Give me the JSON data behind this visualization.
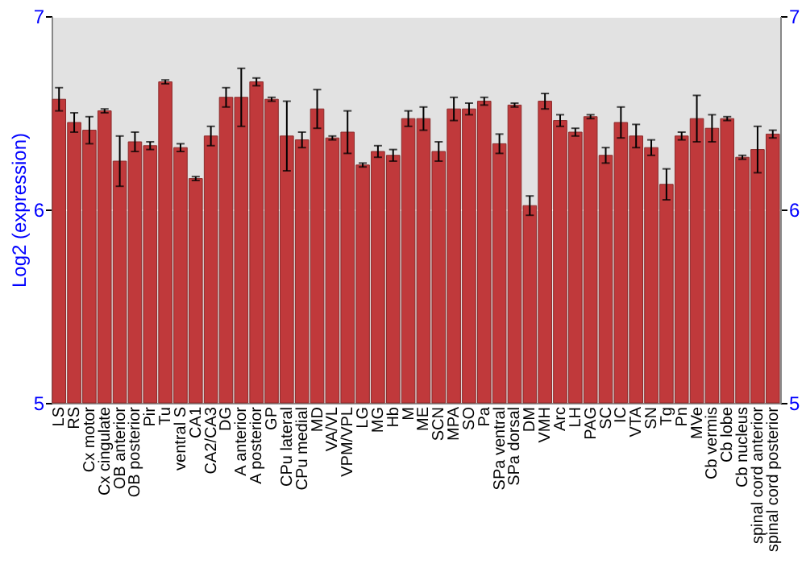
{
  "chart_data": {
    "type": "bar",
    "ylabel": "Log2 (expression)",
    "categories": [
      "LS",
      "RS",
      "Cx motor",
      "Cx cingulate",
      "OB anterior",
      "OB posterior",
      "Pir",
      "Tu",
      "ventral S",
      "CA1",
      "CA2/CA3",
      "DG",
      "A anterior",
      "A posterior",
      "GP",
      "CPu lateral",
      "CPu medial",
      "MD",
      "VA/VL",
      "VPM/VPL",
      "LG",
      "MG",
      "Hb",
      "M",
      "ME",
      "SCN",
      "MPA",
      "SO",
      "Pa",
      "SPa ventral",
      "SPa dorsal",
      "DM",
      "VMH",
      "Arc",
      "LH",
      "PAG",
      "SC",
      "IC",
      "VTA",
      "SN",
      "Tg",
      "Pn",
      "MVe",
      "Cb vermis",
      "Cb lobe",
      "Cb nucleus",
      "spinal cord anterior",
      "spinal cord posterior"
    ],
    "values": [
      6.57,
      6.45,
      6.41,
      6.51,
      6.25,
      6.35,
      6.33,
      6.66,
      6.32,
      6.16,
      6.38,
      6.58,
      6.58,
      6.66,
      6.57,
      6.38,
      6.36,
      6.52,
      6.37,
      6.4,
      6.23,
      6.3,
      6.28,
      6.47,
      6.47,
      6.3,
      6.52,
      6.52,
      6.56,
      6.34,
      6.54,
      6.02,
      6.56,
      6.46,
      6.4,
      6.48,
      6.28,
      6.45,
      6.38,
      6.32,
      6.13,
      6.38,
      6.47,
      6.42,
      6.47,
      6.27,
      6.31,
      6.39
    ],
    "errors": [
      0.06,
      0.05,
      0.07,
      0.01,
      0.13,
      0.05,
      0.02,
      0.01,
      0.02,
      0.01,
      0.05,
      0.05,
      0.15,
      0.02,
      0.01,
      0.18,
      0.04,
      0.1,
      0.01,
      0.11,
      0.01,
      0.03,
      0.03,
      0.04,
      0.06,
      0.05,
      0.06,
      0.03,
      0.02,
      0.05,
      0.01,
      0.05,
      0.04,
      0.03,
      0.02,
      0.01,
      0.04,
      0.08,
      0.06,
      0.04,
      0.08,
      0.02,
      0.12,
      0.07,
      0.01,
      0.01,
      0.12,
      0.02
    ],
    "color": "#c0393b",
    "ylim": [
      5,
      7
    ],
    "yticks": [
      5,
      6,
      7
    ],
    "y2lim": [
      5,
      7
    ],
    "y2ticks": [
      5,
      6,
      7
    ],
    "grid": "y"
  }
}
